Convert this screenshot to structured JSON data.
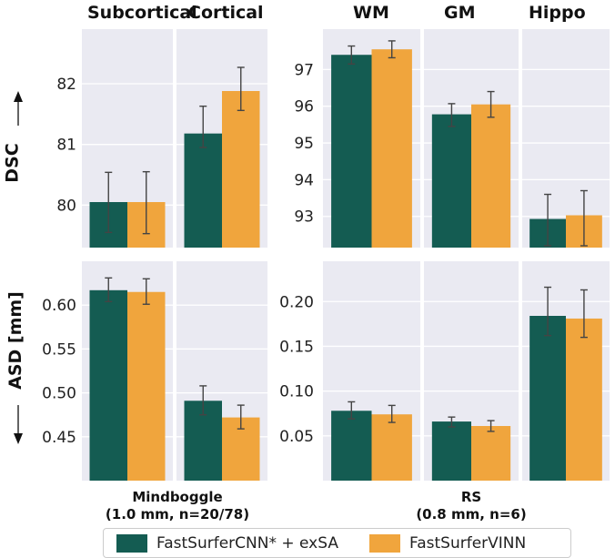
{
  "colors": {
    "cnn": "#145c52",
    "vinn": "#f0a53d",
    "panel_bg": "#eaeaf2",
    "grid": "#ffffff",
    "err": "#444444"
  },
  "labels": {
    "dsc": "DSC",
    "asd": "ASD [mm]",
    "mindboggle": "Mindboggle",
    "mindboggle_sub": "(1.0 mm, n=20/78)",
    "rs": "RS",
    "rs_sub": "(0.8 mm, n=6)"
  },
  "legend": {
    "cnn": "FastSurferCNN* + exSA",
    "vinn": "FastSurferVINN"
  },
  "chart_data": [
    {
      "type": "bar",
      "metric": "DSC",
      "group": "Mindboggle",
      "categories": [
        "Subcortical",
        "Cortical"
      ],
      "series": [
        {
          "name": "FastSurferCNN* + exSA",
          "values": [
            80.05,
            81.18
          ],
          "err_low": [
            79.55,
            80.95
          ],
          "err_high": [
            80.54,
            81.63
          ]
        },
        {
          "name": "FastSurferVINN",
          "values": [
            80.05,
            81.88
          ],
          "err_low": [
            79.53,
            81.56
          ],
          "err_high": [
            80.55,
            82.27
          ]
        }
      ],
      "ylim": [
        79.3,
        82.9
      ],
      "yticks": [
        "80",
        "81",
        "82"
      ]
    },
    {
      "type": "bar",
      "metric": "DSC",
      "group": "RS",
      "categories": [
        "WM",
        "GM",
        "Hippo"
      ],
      "series": [
        {
          "name": "FastSurferCNN* + exSA",
          "values": [
            97.4,
            95.78,
            92.93
          ],
          "err_low": [
            97.15,
            95.45,
            92.2
          ],
          "err_high": [
            97.64,
            96.07,
            93.6
          ]
        },
        {
          "name": "FastSurferVINN",
          "values": [
            97.55,
            96.05,
            93.03
          ],
          "err_low": [
            97.32,
            95.7,
            92.2
          ],
          "err_high": [
            97.78,
            96.4,
            93.7
          ]
        }
      ],
      "ylim": [
        92.15,
        98.1
      ],
      "yticks": [
        "93",
        "94",
        "95",
        "96",
        "97"
      ]
    },
    {
      "type": "bar",
      "metric": "ASD",
      "group": "Mindboggle",
      "categories": [
        "Subcortical",
        "Cortical"
      ],
      "series": [
        {
          "name": "FastSurferCNN* + exSA",
          "values": [
            0.617,
            0.491
          ],
          "err_low": [
            0.604,
            0.475
          ],
          "err_high": [
            0.631,
            0.508
          ]
        },
        {
          "name": "FastSurferVINN",
          "values": [
            0.615,
            0.472
          ],
          "err_low": [
            0.601,
            0.459
          ],
          "err_high": [
            0.63,
            0.486
          ]
        }
      ],
      "ylim": [
        0.4,
        0.65
      ],
      "yticks": [
        "0.45",
        "0.50",
        "0.55",
        "0.60"
      ]
    },
    {
      "type": "bar",
      "metric": "ASD",
      "group": "RS",
      "categories": [
        "WM",
        "GM",
        "Hippo"
      ],
      "series": [
        {
          "name": "FastSurferCNN* + exSA",
          "values": [
            0.078,
            0.066,
            0.184
          ],
          "err_low": [
            0.069,
            0.06,
            0.162
          ],
          "err_high": [
            0.088,
            0.071,
            0.216
          ]
        },
        {
          "name": "FastSurferVINN",
          "values": [
            0.074,
            0.061,
            0.181
          ],
          "err_low": [
            0.065,
            0.055,
            0.16
          ],
          "err_high": [
            0.084,
            0.067,
            0.213
          ]
        }
      ],
      "ylim": [
        0.0,
        0.245
      ],
      "yticks": [
        "0.05",
        "0.10",
        "0.15",
        "0.20"
      ]
    }
  ]
}
